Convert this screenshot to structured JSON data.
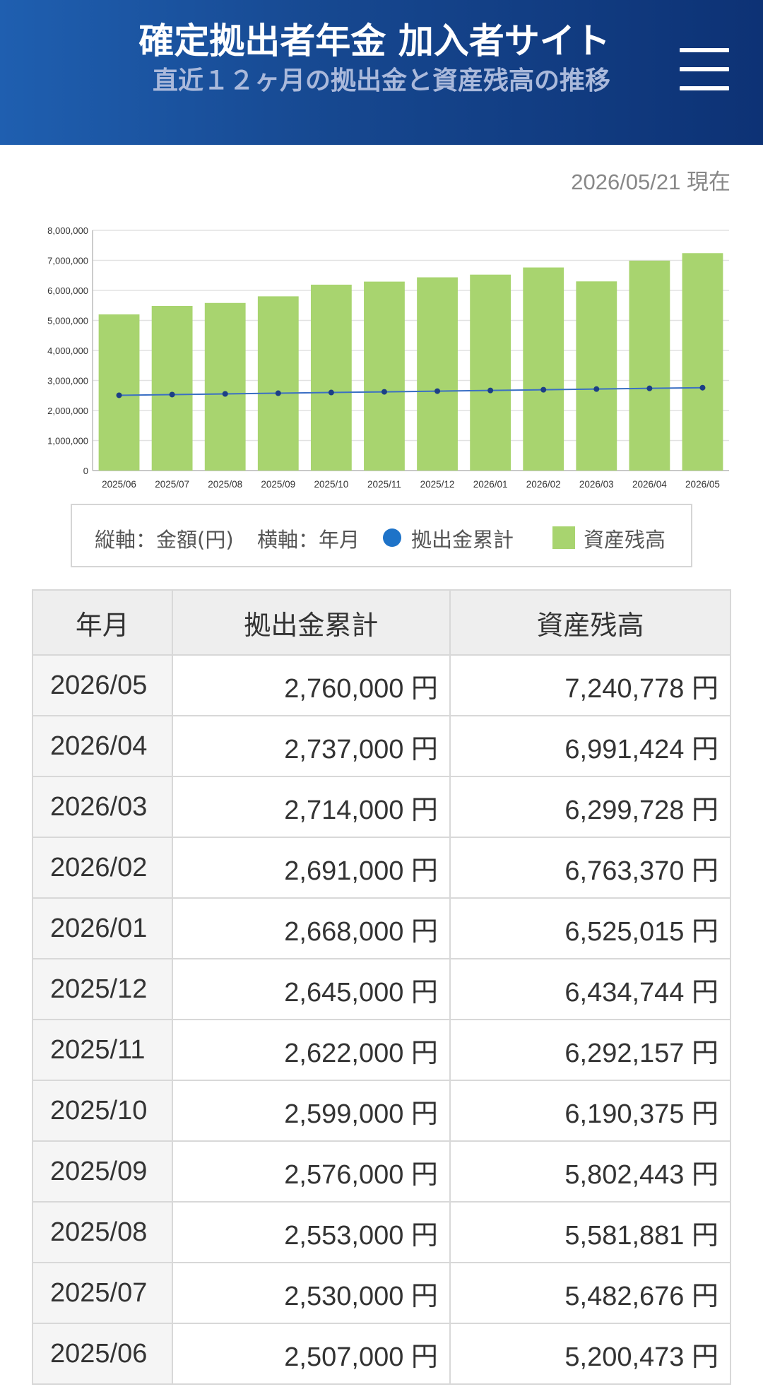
{
  "header": {
    "title": "確定拠出者年金 加入者サイト",
    "subtitle": "直近１２ヶ月の拠出金と資産残高の推移",
    "menu_icon": "hamburger-menu-icon"
  },
  "as_of": "2026/05/21 現在",
  "chart_data": {
    "type": "bar",
    "categories": [
      "2025/06",
      "2025/07",
      "2025/08",
      "2025/09",
      "2025/10",
      "2025/11",
      "2025/12",
      "2026/01",
      "2026/02",
      "2026/03",
      "2026/04",
      "2026/05"
    ],
    "series": [
      {
        "name": "資産残高",
        "type": "bar",
        "color": "#a8d46f",
        "values": [
          5200473,
          5482676,
          5581881,
          5802443,
          6190375,
          6292157,
          6434744,
          6525015,
          6763370,
          6299728,
          6991424,
          7240778
        ]
      },
      {
        "name": "拠出金累計",
        "type": "line",
        "color": "#1e73c8",
        "values": [
          2507000,
          2530000,
          2553000,
          2576000,
          2599000,
          2622000,
          2645000,
          2668000,
          2691000,
          2714000,
          2737000,
          2760000
        ]
      }
    ],
    "y_ticks": [
      "0",
      "1,000,000",
      "2,000,000",
      "3,000,000",
      "4,000,000",
      "5,000,000",
      "6,000,000",
      "7,000,000",
      "8,000,000"
    ],
    "ylim": [
      0,
      8000000
    ],
    "grid": true,
    "legend_position": "bottom"
  },
  "legend": {
    "y_axis": "縦軸：金額(円)",
    "x_axis": "横軸：年月",
    "line_label": "拠出金累計",
    "bar_label": "資産残高"
  },
  "table": {
    "headers": [
      "年月",
      "拠出金累計",
      "資産残高"
    ],
    "rows": [
      [
        "2026/05",
        "2,760,000 円",
        "7,240,778 円"
      ],
      [
        "2026/04",
        "2,737,000 円",
        "6,991,424 円"
      ],
      [
        "2026/03",
        "2,714,000 円",
        "6,299,728 円"
      ],
      [
        "2026/02",
        "2,691,000 円",
        "6,763,370 円"
      ],
      [
        "2026/01",
        "2,668,000 円",
        "6,525,015 円"
      ],
      [
        "2025/12",
        "2,645,000 円",
        "6,434,744 円"
      ],
      [
        "2025/11",
        "2,622,000 円",
        "6,292,157 円"
      ],
      [
        "2025/10",
        "2,599,000 円",
        "6,190,375 円"
      ],
      [
        "2025/09",
        "2,576,000 円",
        "5,802,443 円"
      ],
      [
        "2025/08",
        "2,553,000 円",
        "5,581,881 円"
      ],
      [
        "2025/07",
        "2,530,000 円",
        "5,482,676 円"
      ],
      [
        "2025/06",
        "2,507,000 円",
        "5,200,473 円"
      ]
    ]
  }
}
